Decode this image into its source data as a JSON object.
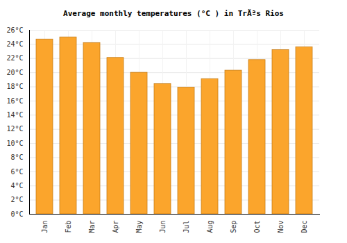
{
  "chart_data": {
    "type": "bar",
    "title": "Average monthly temperatures (°C ) in TrÃªs Rios",
    "categories": [
      "Jan",
      "Feb",
      "Mar",
      "Apr",
      "May",
      "Jun",
      "Jul",
      "Aug",
      "Sep",
      "Oct",
      "Nov",
      "Dec"
    ],
    "values": [
      24.7,
      25.0,
      24.2,
      22.1,
      20.0,
      18.4,
      17.9,
      19.1,
      20.3,
      21.8,
      23.2,
      23.6
    ],
    "color": "#fba52c",
    "ylim": [
      0,
      26
    ],
    "yticks": [
      {
        "value": 0,
        "label": "0°C"
      },
      {
        "value": 2,
        "label": "2°C"
      },
      {
        "value": 4,
        "label": "4°C"
      },
      {
        "value": 6,
        "label": "6°C"
      },
      {
        "value": 8,
        "label": "8°C"
      },
      {
        "value": 10,
        "label": "10°C"
      },
      {
        "value": 12,
        "label": "12°C"
      },
      {
        "value": 14,
        "label": "14°C"
      },
      {
        "value": 16,
        "label": "16°C"
      },
      {
        "value": 18,
        "label": "18°C"
      },
      {
        "value": 20,
        "label": "20°C"
      },
      {
        "value": 22,
        "label": "22°C"
      },
      {
        "value": 24,
        "label": "24°C"
      },
      {
        "value": 26,
        "label": "26°C"
      }
    ],
    "grid": true
  }
}
